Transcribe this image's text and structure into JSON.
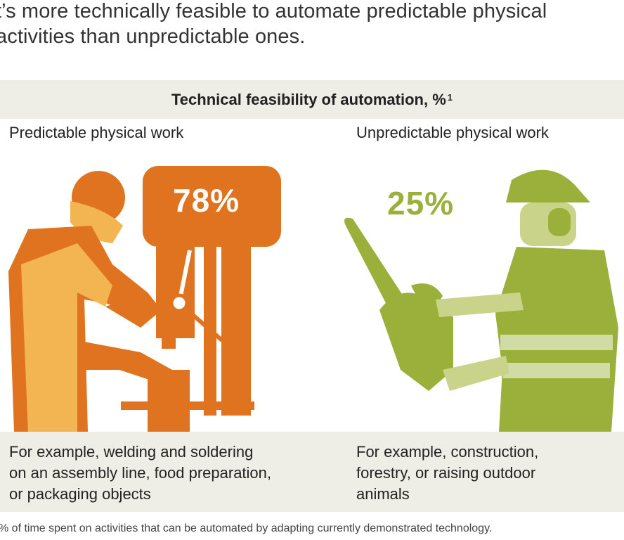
{
  "headline": {
    "line1": "t’s more technically feasible to automate predictable physical",
    "line2": "activities than unpredictable ones."
  },
  "band_title": "Technical feasibility of automation, %",
  "band_title_sup": "1",
  "colors": {
    "orange": "#e0731f",
    "orange_light": "#f2b552",
    "green": "#9ab03a",
    "green_light": "#c9d48a",
    "band": "#eeede6"
  },
  "chart_data": {
    "type": "bar",
    "title": "Technical feasibility of automation, %",
    "categories": [
      "Predictable physical work",
      "Unpredictable physical work"
    ],
    "values": [
      78,
      25
    ],
    "value_labels": [
      "78%",
      "25%"
    ]
  },
  "panels": [
    {
      "title": "Predictable physical work",
      "value_label": "78%",
      "example": "For example, welding and soldering\non an assembly line, food preparation,\nor packaging objects"
    },
    {
      "title": "Unpredictable physical work",
      "value_label": "25%",
      "example": "For example, construction,\nforestry, or raising outdoor\nanimals"
    }
  ],
  "footnote": "% of time spent on activities that can be automated by adapting currently demonstrated technology."
}
